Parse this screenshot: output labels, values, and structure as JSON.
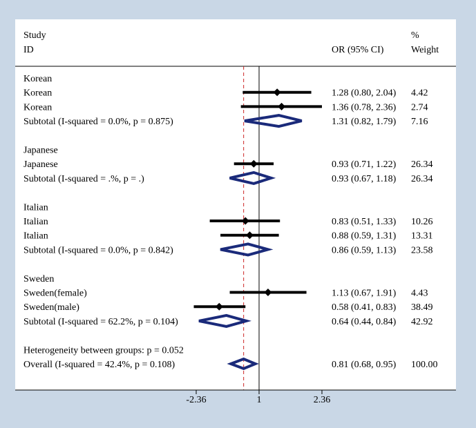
{
  "chart_data": {
    "type": "forest",
    "header": {
      "study_line1": "Study",
      "study_line2": "ID",
      "or_header": "OR (95% CI)",
      "weight_line1": "%",
      "weight_line2": "Weight"
    },
    "x_axis": {
      "scale": "log",
      "ticks": [
        "-2.36",
        "1",
        "2.36"
      ],
      "null_value": 1,
      "overall_reference": 0.81
    },
    "groups": [
      {
        "label": "Korean",
        "studies": [
          {
            "label": "Korean",
            "or": 1.28,
            "lo": 0.8,
            "hi": 2.04,
            "ci": "1.28 (0.80, 2.04)",
            "weight": "4.42"
          },
          {
            "label": "Korean",
            "or": 1.36,
            "lo": 0.78,
            "hi": 2.36,
            "ci": "1.36 (0.78, 2.36)",
            "weight": "2.74"
          }
        ],
        "subtotal": {
          "label": "Subtotal  (I-squared = 0.0%, p = 0.875)",
          "or": 1.31,
          "lo": 0.82,
          "hi": 1.79,
          "ci": "1.31 (0.82, 1.79)",
          "weight": "7.16"
        }
      },
      {
        "label": "Japanese",
        "studies": [
          {
            "label": "Japanese",
            "or": 0.93,
            "lo": 0.71,
            "hi": 1.22,
            "ci": "0.93 (0.71, 1.22)",
            "weight": "26.34"
          }
        ],
        "subtotal": {
          "label": "Subtotal  (I-squared = .%, p = .)",
          "or": 0.93,
          "lo": 0.67,
          "hi": 1.18,
          "ci": "0.93 (0.67, 1.18)",
          "weight": "26.34"
        }
      },
      {
        "label": "Italian",
        "studies": [
          {
            "label": "Italian",
            "or": 0.83,
            "lo": 0.51,
            "hi": 1.33,
            "ci": "0.83 (0.51, 1.33)",
            "weight": "10.26"
          },
          {
            "label": "Italian",
            "or": 0.88,
            "lo": 0.59,
            "hi": 1.31,
            "ci": "0.88 (0.59, 1.31)",
            "weight": "13.31"
          }
        ],
        "subtotal": {
          "label": "Subtotal  (I-squared = 0.0%, p = 0.842)",
          "or": 0.86,
          "lo": 0.59,
          "hi": 1.13,
          "ci": "0.86 (0.59, 1.13)",
          "weight": "23.58"
        }
      },
      {
        "label": "Sweden",
        "studies": [
          {
            "label": "Sweden(female)",
            "or": 1.13,
            "lo": 0.67,
            "hi": 1.91,
            "ci": "1.13 (0.67, 1.91)",
            "weight": "4.43"
          },
          {
            "label": "Sweden(male)",
            "or": 0.58,
            "lo": 0.41,
            "hi": 0.83,
            "ci": "0.58 (0.41, 0.83)",
            "weight": "38.49"
          }
        ],
        "subtotal": {
          "label": "Subtotal  (I-squared = 62.2%, p = 0.104)",
          "or": 0.64,
          "lo": 0.44,
          "hi": 0.84,
          "ci": "0.64 (0.44, 0.84)",
          "weight": "42.92"
        }
      }
    ],
    "heterogeneity": "Heterogeneity between groups: p = 0.052",
    "overall": {
      "label": "Overall  (I-squared = 42.4%, p = 0.108)",
      "or": 0.81,
      "lo": 0.68,
      "hi": 0.95,
      "ci": "0.81 (0.68, 0.95)",
      "weight": "100.00"
    },
    "colors": {
      "background": "#c9d7e6",
      "panel": "#ffffff",
      "study_marker": "#000000",
      "diamond": "#1a2a7a",
      "null_line": "#000000",
      "overall_line": "#cc2222"
    }
  }
}
